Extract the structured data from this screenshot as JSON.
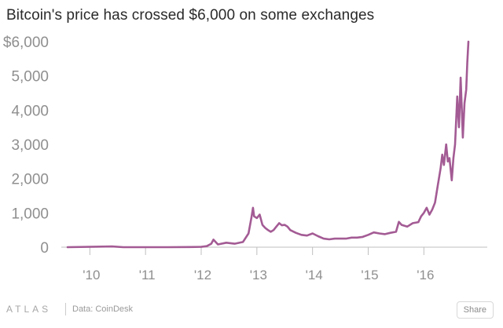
{
  "chart": {
    "title": "Bitcoin's price has crossed $6,000 on some exchanges"
  },
  "footer": {
    "brand": "ATLAS",
    "source": "Data: CoinDesk",
    "share_label": "Share"
  },
  "colors": {
    "line": "#a35b94",
    "tick_label": "#8f8f8f",
    "axis": "#bfbfbf"
  },
  "chart_data": {
    "type": "line",
    "title": "Bitcoin's price has crossed $6,000 on some exchanges",
    "xlabel": "",
    "ylabel": "",
    "x_ticks": [
      2010,
      2011,
      2012,
      2013,
      2014,
      2015,
      2016
    ],
    "x_tick_labels": [
      "'10",
      "'11",
      "'12",
      "'13",
      "'14",
      "'15",
      "'16"
    ],
    "y_ticks": [
      0,
      1000,
      2000,
      3000,
      4000,
      5000,
      6000
    ],
    "y_tick_labels": [
      "0",
      "1,000",
      "2,000",
      "3,000",
      "4,000",
      "5,000",
      "$6,000"
    ],
    "xlim": [
      2009.6,
      2016.8
    ],
    "ylim": [
      0,
      6000
    ],
    "grid": false,
    "legend": "none",
    "series": [
      {
        "x": [
          2009.6,
          2010.4,
          2010.6,
          2011.0,
          2011.4,
          2011.8,
          2012.0,
          2012.1,
          2012.18,
          2012.22,
          2012.3,
          2012.45,
          2012.6,
          2012.75,
          2012.85,
          2012.9,
          2012.93,
          2012.95,
          2013.0,
          2013.05,
          2013.1,
          2013.15,
          2013.2,
          2013.25,
          2013.3,
          2013.35,
          2013.4,
          2013.45,
          2013.5,
          2013.55,
          2013.6,
          2013.7,
          2013.8,
          2013.9,
          2014.0,
          2014.1,
          2014.2,
          2014.3,
          2014.4,
          2014.5,
          2014.6,
          2014.7,
          2014.8,
          2014.9,
          2015.0,
          2015.1,
          2015.2,
          2015.3,
          2015.4,
          2015.5,
          2015.55,
          2015.6,
          2015.7,
          2015.8,
          2015.9,
          2015.95,
          2016.0,
          2016.05,
          2016.1,
          2016.15,
          2016.2,
          2016.25,
          2016.3,
          2016.33,
          2016.36,
          2016.4,
          2016.43,
          2016.46,
          2016.5,
          2016.53,
          2016.56,
          2016.6,
          2016.63,
          2016.66,
          2016.7,
          2016.73,
          2016.76,
          2016.78,
          2016.8
        ],
        "values": [
          0,
          20,
          0,
          0,
          0,
          5,
          10,
          30,
          100,
          220,
          80,
          130,
          100,
          150,
          400,
          850,
          1150,
          900,
          850,
          950,
          650,
          560,
          500,
          450,
          500,
          600,
          700,
          640,
          650,
          600,
          500,
          420,
          360,
          340,
          400,
          320,
          250,
          230,
          250,
          250,
          250,
          280,
          280,
          300,
          360,
          430,
          400,
          380,
          420,
          450,
          740,
          650,
          600,
          700,
          730,
          900,
          1000,
          1150,
          950,
          1100,
          1300,
          1800,
          2300,
          2700,
          2400,
          3000,
          2500,
          2600,
          1950,
          2600,
          3000,
          4400,
          3500,
          4950,
          3200,
          4200,
          4600,
          5400,
          6000
        ]
      }
    ]
  }
}
